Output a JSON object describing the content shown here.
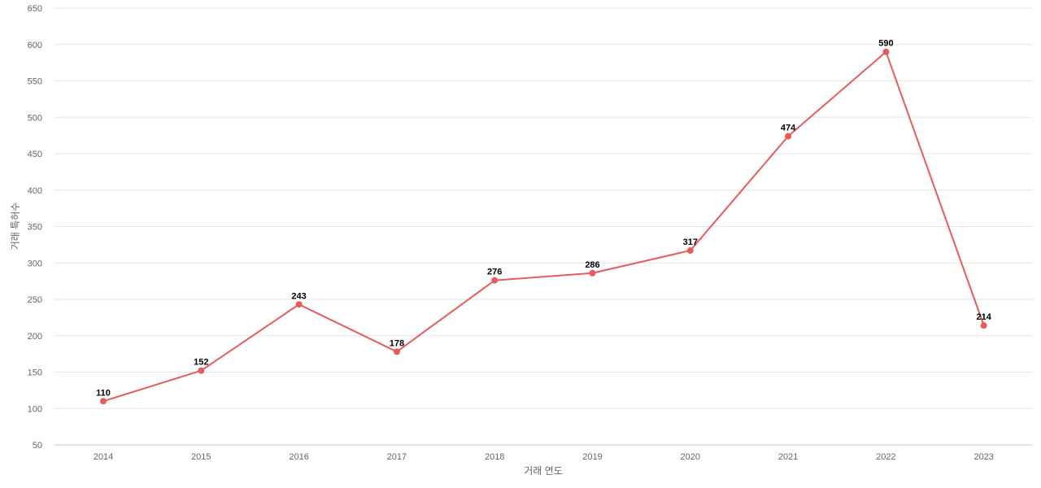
{
  "chart_data": {
    "type": "line",
    "title": "",
    "xlabel": "거래 연도",
    "ylabel": "거래 특허수",
    "categories": [
      "2014",
      "2015",
      "2016",
      "2017",
      "2018",
      "2019",
      "2020",
      "2021",
      "2022",
      "2023"
    ],
    "series": [
      {
        "values": [
          110,
          152,
          243,
          178,
          276,
          286,
          317,
          474,
          590,
          214
        ],
        "color": "#e85b5b"
      }
    ],
    "ylim": [
      50,
      650
    ],
    "yticks": [
      50,
      100,
      150,
      200,
      250,
      300,
      350,
      400,
      450,
      500,
      550,
      600,
      650
    ],
    "grid": true,
    "data_labels": true,
    "legend": "none"
  }
}
